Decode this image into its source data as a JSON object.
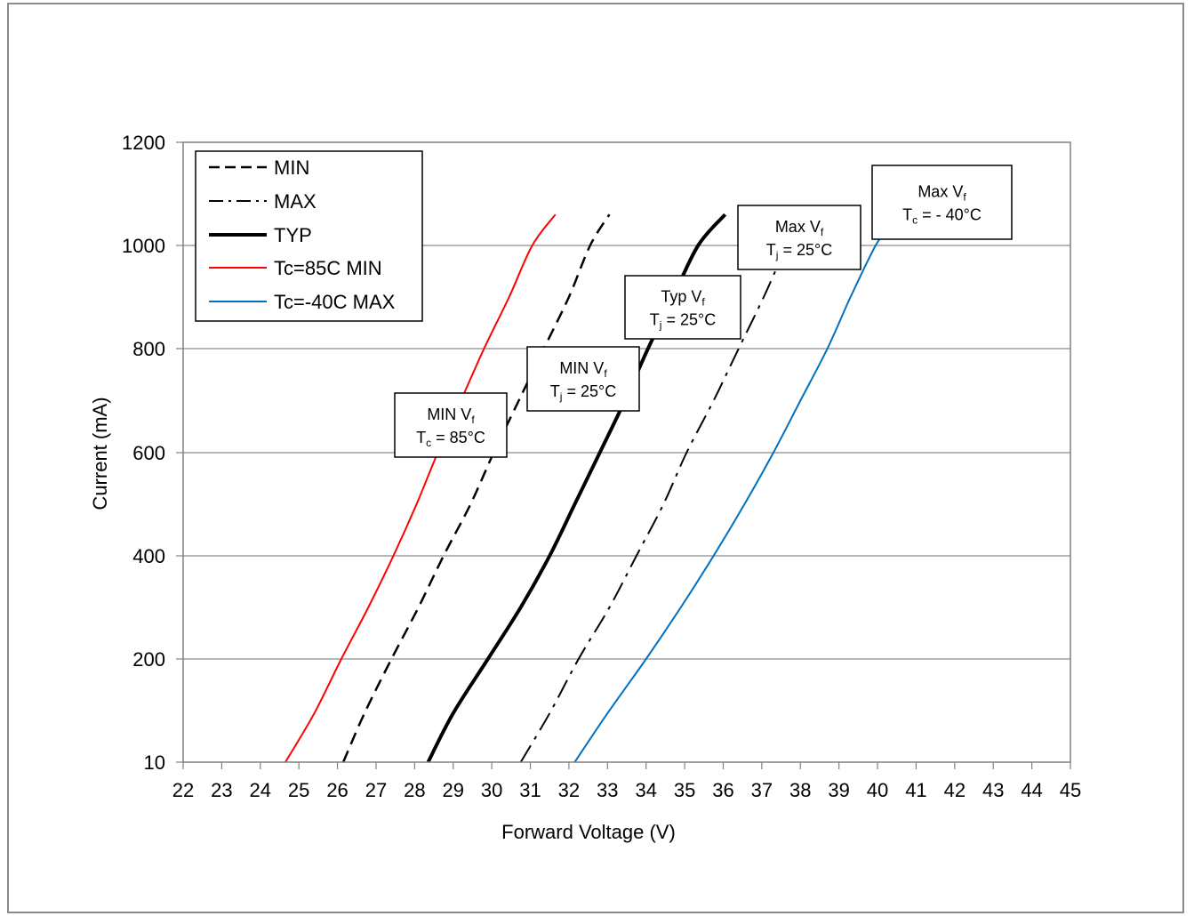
{
  "chart_data": {
    "type": "line",
    "xlabel": "Forward Voltage (V)",
    "ylabel": "Current (mA)",
    "xlim": [
      22,
      45
    ],
    "ylim": [
      10,
      1200
    ],
    "x_ticks": [
      "22",
      "23",
      "24",
      "25",
      "26",
      "27",
      "28",
      "29",
      "30",
      "31",
      "32",
      "33",
      "34",
      "35",
      "36",
      "37",
      "38",
      "39",
      "40",
      "41",
      "42",
      "43",
      "44",
      "45"
    ],
    "y_ticks": [
      "10",
      "200",
      "400",
      "600",
      "800",
      "1000",
      "1200"
    ],
    "y_tick_values": [
      10,
      200,
      400,
      600,
      800,
      1000,
      1200
    ],
    "grid": "horizontal",
    "legend_position": "top-left",
    "series": [
      {
        "name": "MIN",
        "color": "#000000",
        "style": "dashed",
        "width": 2.5,
        "points": [
          [
            26.15,
            10
          ],
          [
            26.7,
            100
          ],
          [
            27.4,
            200
          ],
          [
            28.1,
            300
          ],
          [
            28.75,
            400
          ],
          [
            29.45,
            500
          ],
          [
            30.05,
            600
          ],
          [
            30.7,
            700
          ],
          [
            31.35,
            800
          ],
          [
            32.0,
            900
          ],
          [
            32.55,
            1000
          ],
          [
            33.05,
            1060
          ]
        ]
      },
      {
        "name": "MAX",
        "color": "#000000",
        "style": "dashdot",
        "width": 2,
        "points": [
          [
            30.75,
            10
          ],
          [
            31.5,
            100
          ],
          [
            32.25,
            200
          ],
          [
            33.05,
            300
          ],
          [
            33.75,
            400
          ],
          [
            34.45,
            500
          ],
          [
            35.05,
            600
          ],
          [
            35.75,
            700
          ],
          [
            36.4,
            800
          ],
          [
            37.05,
            900
          ],
          [
            37.65,
            1000
          ],
          [
            38.1,
            1060
          ]
        ]
      },
      {
        "name": "TYP",
        "color": "#000000",
        "style": "solid",
        "width": 4,
        "points": [
          [
            28.35,
            10
          ],
          [
            29.0,
            100
          ],
          [
            29.9,
            200
          ],
          [
            30.75,
            300
          ],
          [
            31.5,
            400
          ],
          [
            32.15,
            500
          ],
          [
            32.8,
            600
          ],
          [
            33.45,
            700
          ],
          [
            34.05,
            800
          ],
          [
            34.7,
            900
          ],
          [
            35.35,
            1000
          ],
          [
            36.05,
            1060
          ]
        ]
      },
      {
        "name": "Tc=85C MIN",
        "color": "#ff0000",
        "style": "solid",
        "width": 2,
        "points": [
          [
            24.65,
            10
          ],
          [
            25.4,
            100
          ],
          [
            26.1,
            200
          ],
          [
            26.8,
            300
          ],
          [
            27.45,
            400
          ],
          [
            28.05,
            500
          ],
          [
            28.6,
            600
          ],
          [
            29.2,
            700
          ],
          [
            29.8,
            800
          ],
          [
            30.45,
            900
          ],
          [
            31.05,
            1000
          ],
          [
            31.65,
            1060
          ]
        ]
      },
      {
        "name": "Tc=-40C MAX",
        "color": "#0070c0",
        "style": "solid",
        "width": 2,
        "points": [
          [
            32.15,
            10
          ],
          [
            33.0,
            100
          ],
          [
            34.0,
            200
          ],
          [
            34.9,
            300
          ],
          [
            35.75,
            400
          ],
          [
            36.55,
            500
          ],
          [
            37.3,
            600
          ],
          [
            38.0,
            700
          ],
          [
            38.7,
            800
          ],
          [
            39.3,
            900
          ],
          [
            39.95,
            1000
          ],
          [
            40.25,
            1030
          ]
        ]
      }
    ],
    "annotations": [
      {
        "id": "min85",
        "line1": "MIN V",
        "sub1": "f",
        "line2_a": "T",
        "sub2": "c",
        "line2_b": " = 85°C"
      },
      {
        "id": "min25",
        "line1": "MIN V",
        "sub1": "f",
        "line2_a": "T",
        "sub2": "j",
        "line2_b": " = 25°C"
      },
      {
        "id": "typ25",
        "line1": "Typ V",
        "sub1": "f",
        "line2_a": "T",
        "sub2": "j",
        "line2_b": " = 25°C"
      },
      {
        "id": "max25",
        "line1": "Max V",
        "sub1": "f",
        "line2_a": "T",
        "sub2": "j",
        "line2_b": " = 25°C"
      },
      {
        "id": "max40",
        "line1": "Max V",
        "sub1": "f",
        "line2_a": "T",
        "sub2": "c",
        "line2_b": " = - 40°C"
      }
    ]
  }
}
